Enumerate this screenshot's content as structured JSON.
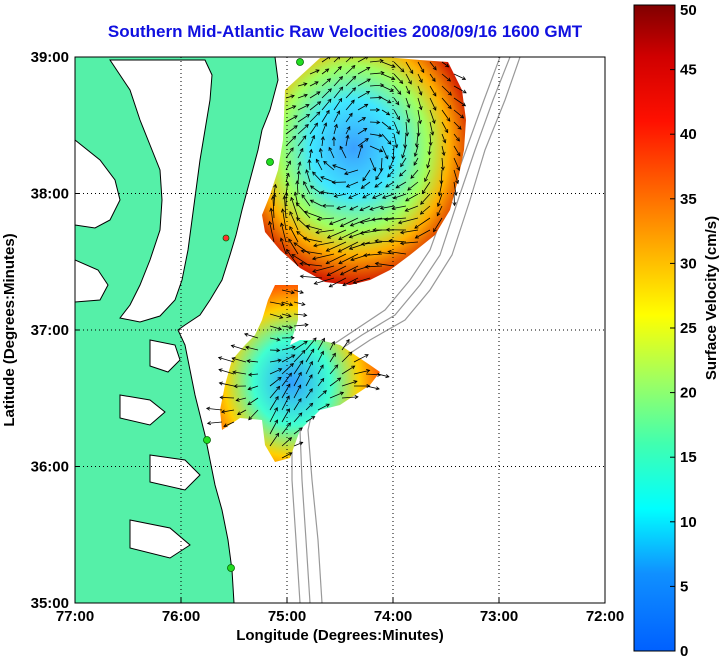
{
  "title": "Southern Mid-Atlantic Raw Velocities 2008/09/16 1600 GMT",
  "chart_data": {
    "type": "map",
    "xlabel": "Longitude (Degrees:Minutes)",
    "ylabel": "Latitude (Degrees:Minutes)",
    "xlim": [
      -77,
      -72
    ],
    "ylim": [
      35,
      39
    ],
    "x_ticks": [
      {
        "value": -77,
        "label": "77:00"
      },
      {
        "value": -76,
        "label": "76:00"
      },
      {
        "value": -75,
        "label": "75:00"
      },
      {
        "value": -74,
        "label": "74:00"
      },
      {
        "value": -73,
        "label": "73:00"
      },
      {
        "value": -72,
        "label": "72:00"
      }
    ],
    "y_ticks": [
      {
        "value": 35,
        "label": "35:00"
      },
      {
        "value": 36,
        "label": "36:00"
      },
      {
        "value": 37,
        "label": "37:00"
      },
      {
        "value": 38,
        "label": "38:00"
      },
      {
        "value": 39,
        "label": "39:00"
      }
    ],
    "grid": true,
    "colorbar": {
      "label": "Surface Velocity (cm/s)",
      "min": 0,
      "max": 50,
      "ticks": [
        {
          "value": 0,
          "label": "0"
        },
        {
          "value": 5,
          "label": "5"
        },
        {
          "value": 10,
          "label": "10"
        },
        {
          "value": 15,
          "label": "15"
        },
        {
          "value": 20,
          "label": "20"
        },
        {
          "value": 25,
          "label": "25"
        },
        {
          "value": 30,
          "label": "30"
        },
        {
          "value": 35,
          "label": "35"
        },
        {
          "value": 40,
          "label": "40"
        },
        {
          "value": 45,
          "label": "45"
        },
        {
          "value": 50,
          "label": "50"
        }
      ],
      "colormap": "jet"
    },
    "colors": {
      "land": "#55f0a8",
      "land_outline": "#000000",
      "bathymetry": "#999999",
      "stations": "#22dd22",
      "title": "#1010e0"
    }
  }
}
